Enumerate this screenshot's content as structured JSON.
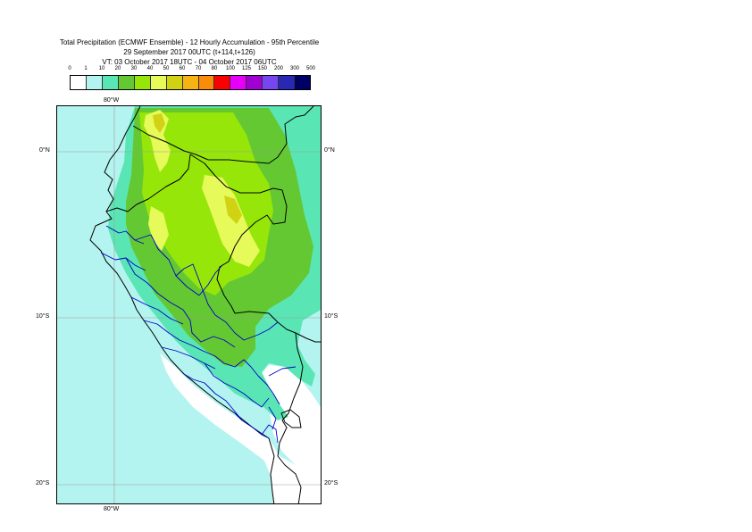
{
  "title": {
    "line1": "Total Precipitation (ECMWF Ensemble) - 12 Hourly Accumulation - 95th Percentile",
    "line2": "29 September 2017 00UTC (t+114,t+126)",
    "line3": "VT: 03 October 2017 18UTC - 04 October 2017 06UTC"
  },
  "legend": {
    "labels": [
      "0",
      "1",
      "10",
      "20",
      "30",
      "40",
      "50",
      "60",
      "70",
      "80",
      "100",
      "125",
      "150",
      "200",
      "300",
      "500"
    ],
    "colors": [
      "#ffffff",
      "#b4f4f0",
      "#5ae6b4",
      "#64c832",
      "#96e60a",
      "#e6fa5a",
      "#d2d214",
      "#f5b414",
      "#fa8c0a",
      "#fa0000",
      "#e600fa",
      "#a000d2",
      "#7846f0",
      "#2828b4",
      "#000064"
    ]
  },
  "axes": {
    "lon_top": "80°W",
    "lon_bottom": "80°W",
    "lat_left": [
      "0°N",
      "10°S",
      "20°S"
    ],
    "lat_right": [
      "0°N",
      "10°S",
      "20°S"
    ]
  },
  "map": {
    "ocean_color": "#b4f4f0",
    "dry_color": "#ffffff",
    "grid_color": "#9a9a9a",
    "country_border_color": "#000000",
    "region_border_color": "#0000c8"
  }
}
